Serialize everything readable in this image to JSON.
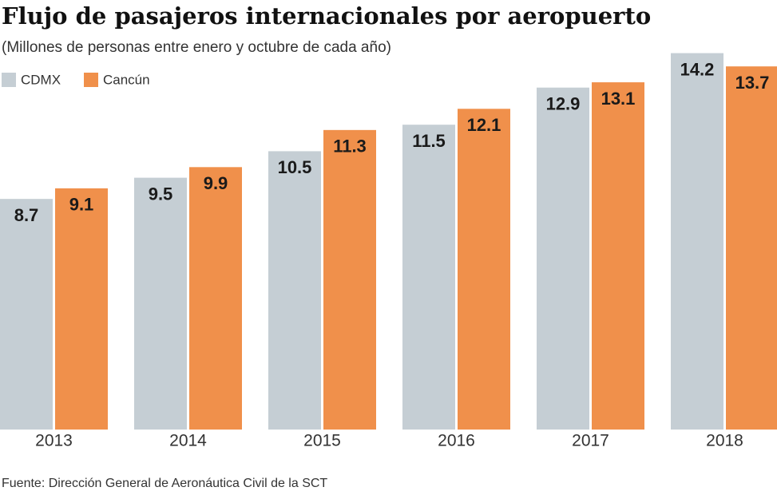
{
  "chart_data": {
    "type": "bar",
    "title": "Flujo de pasajeros internacionales por aeropuerto",
    "subtitle": "(Millones de personas entre enero y octubre de cada año)",
    "source": "Fuente: Dirección General de Aeronáutica Civil de la SCT",
    "categories": [
      "2013",
      "2014",
      "2015",
      "2016",
      "2017",
      "2018"
    ],
    "series": [
      {
        "name": "CDMX",
        "color": "#c5ced4",
        "values": [
          8.7,
          9.5,
          10.5,
          11.5,
          12.9,
          14.2
        ]
      },
      {
        "name": "Cancún",
        "color": "#f0904b",
        "values": [
          9.1,
          9.9,
          11.3,
          12.1,
          13.1,
          13.7
        ]
      }
    ],
    "ylim": [
      0,
      15
    ]
  }
}
